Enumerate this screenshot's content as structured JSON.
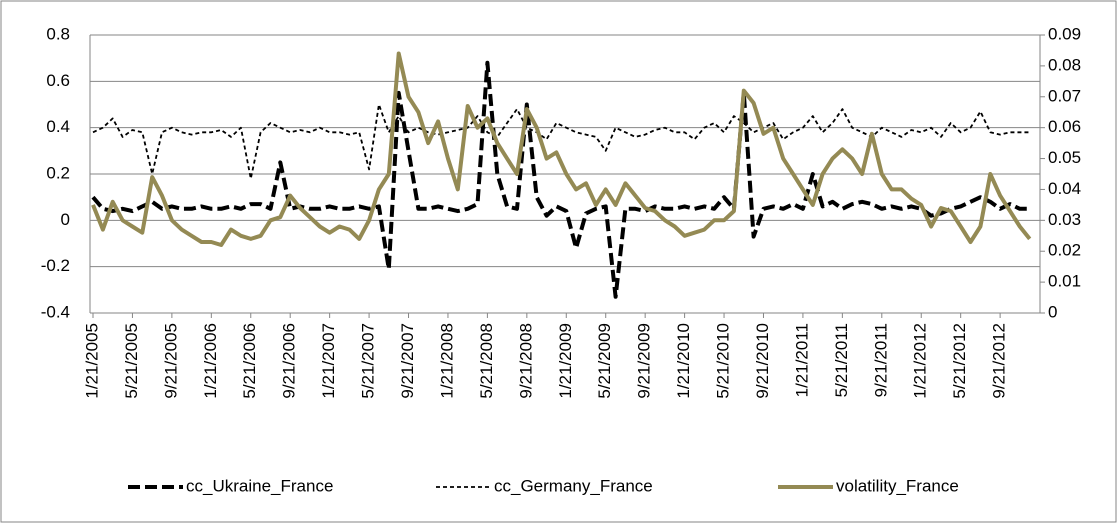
{
  "chart_data": {
    "type": "line",
    "categories": [
      "1/21/2005",
      null,
      null,
      null,
      "5/21/2005",
      null,
      null,
      null,
      "9/21/2005",
      null,
      null,
      null,
      "1/21/2006",
      null,
      null,
      null,
      "5/21/2006",
      null,
      null,
      null,
      "9/21/2006",
      null,
      null,
      null,
      "1/21/2007",
      null,
      null,
      null,
      "5/21/2007",
      null,
      null,
      null,
      "9/21/2007",
      null,
      null,
      null,
      "1/21/2008",
      null,
      null,
      null,
      "5/21/2008",
      null,
      null,
      null,
      "9/21/2008",
      null,
      null,
      null,
      "1/21/2009",
      null,
      null,
      null,
      "5/21/2009",
      null,
      null,
      null,
      "9/21/2009",
      null,
      null,
      null,
      "1/21/2010",
      null,
      null,
      null,
      "5/21/2010",
      null,
      null,
      null,
      "9/21/2010",
      null,
      null,
      null,
      "1/21/2011",
      null,
      null,
      null,
      "5/21/2011",
      null,
      null,
      null,
      "9/21/2011",
      null,
      null,
      null,
      "1/21/2012",
      null,
      null,
      null,
      "5/21/2012",
      null,
      null,
      null,
      "9/21/2012",
      null,
      null,
      null
    ],
    "series": [
      {
        "name": "cc_Ukraine_France",
        "color": "#000000",
        "line_style": "long-dash",
        "axis": "y",
        "values": [
          0.1,
          0.05,
          0.04,
          0.05,
          0.04,
          0.06,
          0.08,
          0.05,
          0.06,
          0.05,
          0.05,
          0.06,
          0.05,
          0.05,
          0.06,
          0.05,
          0.07,
          0.07,
          0.05,
          0.25,
          0.05,
          0.06,
          0.05,
          0.05,
          0.06,
          0.05,
          0.05,
          0.06,
          0.05,
          0.06,
          -0.21,
          0.55,
          0.3,
          0.05,
          0.05,
          0.06,
          0.05,
          0.04,
          0.05,
          0.07,
          0.68,
          0.2,
          0.06,
          0.05,
          0.5,
          0.1,
          0.02,
          0.06,
          0.04,
          -0.12,
          0.03,
          0.05,
          0.06,
          -0.33,
          0.05,
          0.05,
          0.04,
          0.06,
          0.05,
          0.05,
          0.06,
          0.05,
          0.06,
          0.05,
          0.1,
          0.05,
          0.55,
          -0.07,
          0.05,
          0.06,
          0.05,
          0.07,
          0.05,
          0.2,
          0.06,
          0.08,
          0.05,
          0.07,
          0.08,
          0.07,
          0.05,
          0.06,
          0.05,
          0.06,
          0.05,
          0.02,
          0.03,
          0.05,
          0.06,
          0.08,
          0.1,
          0.08,
          0.05,
          0.07,
          0.05,
          0.05
        ]
      },
      {
        "name": "cc_Germany_France",
        "color": "#000000",
        "line_style": "short-dash",
        "axis": "y",
        "values": [
          0.38,
          0.4,
          0.44,
          0.36,
          0.39,
          0.38,
          0.2,
          0.38,
          0.4,
          0.38,
          0.37,
          0.38,
          0.38,
          0.39,
          0.36,
          0.4,
          0.18,
          0.38,
          0.42,
          0.4,
          0.38,
          0.39,
          0.38,
          0.4,
          0.38,
          0.38,
          0.37,
          0.38,
          0.22,
          0.5,
          0.38,
          0.45,
          0.38,
          0.4,
          0.38,
          0.37,
          0.38,
          0.39,
          0.4,
          0.45,
          0.38,
          0.36,
          0.42,
          0.48,
          0.4,
          0.38,
          0.35,
          0.42,
          0.4,
          0.38,
          0.37,
          0.36,
          0.3,
          0.4,
          0.38,
          0.36,
          0.37,
          0.39,
          0.4,
          0.38,
          0.38,
          0.35,
          0.4,
          0.42,
          0.38,
          0.45,
          0.42,
          0.38,
          0.4,
          0.42,
          0.35,
          0.38,
          0.4,
          0.45,
          0.38,
          0.42,
          0.48,
          0.4,
          0.38,
          0.36,
          0.4,
          0.38,
          0.36,
          0.39,
          0.38,
          0.4,
          0.36,
          0.42,
          0.38,
          0.4,
          0.47,
          0.38,
          0.37,
          0.38,
          0.38,
          0.38
        ]
      },
      {
        "name": "volatility_France",
        "color": "#948a54",
        "line_style": "solid",
        "axis": "y2",
        "values": [
          0.035,
          0.027,
          0.036,
          0.03,
          0.028,
          0.026,
          0.044,
          0.038,
          0.03,
          0.027,
          0.025,
          0.023,
          0.023,
          0.022,
          0.027,
          0.025,
          0.024,
          0.025,
          0.03,
          0.031,
          0.038,
          0.034,
          0.031,
          0.028,
          0.026,
          0.028,
          0.027,
          0.024,
          0.03,
          0.04,
          0.045,
          0.084,
          0.07,
          0.065,
          0.055,
          0.062,
          0.05,
          0.04,
          0.067,
          0.06,
          0.063,
          0.055,
          0.05,
          0.045,
          0.066,
          0.06,
          0.05,
          0.052,
          0.045,
          0.04,
          0.042,
          0.035,
          0.04,
          0.035,
          0.042,
          0.038,
          0.034,
          0.033,
          0.03,
          0.028,
          0.025,
          0.026,
          0.027,
          0.03,
          0.03,
          0.033,
          0.072,
          0.068,
          0.058,
          0.06,
          0.05,
          0.045,
          0.04,
          0.035,
          0.045,
          0.05,
          0.053,
          0.05,
          0.045,
          0.058,
          0.045,
          0.04,
          0.04,
          0.037,
          0.035,
          0.028,
          0.034,
          0.033,
          0.028,
          0.023,
          0.028,
          0.045,
          0.038,
          0.033,
          0.028,
          0.024
        ]
      }
    ],
    "ylim": [
      -0.4,
      0.8
    ],
    "yticks": [
      -0.4,
      -0.2,
      0,
      0.2,
      0.4,
      0.6,
      0.8
    ],
    "y2lim": [
      0,
      0.09
    ],
    "y2ticks": [
      0,
      0.01,
      0.02,
      0.03,
      0.04,
      0.05,
      0.06,
      0.07,
      0.08,
      0.09
    ],
    "grid": true,
    "legend": "bottom"
  }
}
